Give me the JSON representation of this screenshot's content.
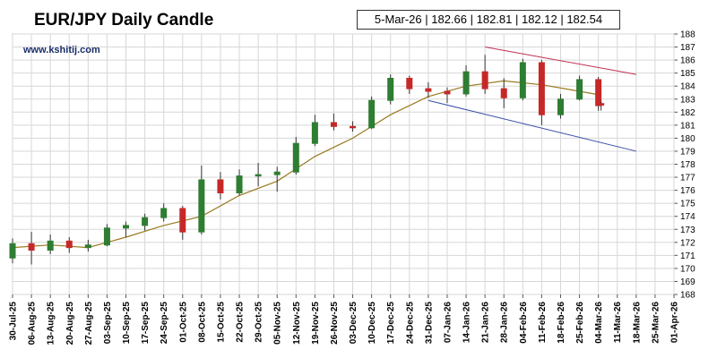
{
  "header": {
    "title": "EUR/JPY Daily Candle",
    "ohlc_readout": "5-Mar-26 | 182.66 | 182.81 | 182.12 | 182.54",
    "watermark": "www.kshitij.com"
  },
  "colors": {
    "up_candle": "#2e7d32",
    "down_candle": "#c62828",
    "moving_average": "#9a7a1f",
    "resistance_line": "#c03050",
    "support_line": "#3b4fa8",
    "grid": "#d7d7d7"
  },
  "chart_data": {
    "type": "candlestick",
    "title": "EUR/JPY Daily Candle",
    "xlabel": "",
    "ylabel": "",
    "ylim": [
      168,
      188
    ],
    "y_ticks": [
      168,
      169,
      170,
      171,
      172,
      173,
      174,
      175,
      176,
      177,
      178,
      179,
      180,
      181,
      182,
      183,
      184,
      185,
      186,
      187,
      188
    ],
    "x_ticks": [
      "30-Jul-25",
      "06-Aug-25",
      "13-Aug-25",
      "20-Aug-25",
      "27-Aug-25",
      "03-Sep-25",
      "10-Sep-25",
      "17-Sep-25",
      "24-Sep-25",
      "01-Oct-25",
      "08-Oct-25",
      "15-Oct-25",
      "22-Oct-25",
      "29-Oct-25",
      "05-Nov-25",
      "12-Nov-25",
      "19-Nov-25",
      "26-Nov-25",
      "03-Dec-25",
      "10-Dec-25",
      "17-Dec-25",
      "24-Dec-25",
      "31-Dec-25",
      "07-Jan-26",
      "14-Jan-26",
      "21-Jan-26",
      "28-Jan-26",
      "04-Feb-26",
      "11-Feb-26",
      "18-Feb-26",
      "25-Feb-26",
      "04-Mar-26",
      "11-Mar-26",
      "18-Mar-26",
      "25-Mar-26",
      "01-Apr-26"
    ],
    "grid": true,
    "candles": [
      {
        "date": "30-Jul-25",
        "o": 170.8,
        "h": 172.3,
        "l": 170.4,
        "c": 171.9
      },
      {
        "date": "06-Aug-25",
        "o": 171.9,
        "h": 172.8,
        "l": 170.3,
        "c": 171.4
      },
      {
        "date": "13-Aug-25",
        "o": 171.4,
        "h": 172.6,
        "l": 171.1,
        "c": 172.1
      },
      {
        "date": "20-Aug-25",
        "o": 172.1,
        "h": 172.4,
        "l": 171.2,
        "c": 171.6
      },
      {
        "date": "27-Aug-25",
        "o": 171.6,
        "h": 172.2,
        "l": 171.3,
        "c": 171.8
      },
      {
        "date": "03-Sep-25",
        "o": 171.8,
        "h": 173.4,
        "l": 171.7,
        "c": 173.1
      },
      {
        "date": "10-Sep-25",
        "o": 173.1,
        "h": 173.6,
        "l": 172.4,
        "c": 173.3
      },
      {
        "date": "17-Sep-25",
        "o": 173.3,
        "h": 174.2,
        "l": 172.9,
        "c": 173.9
      },
      {
        "date": "24-Sep-25",
        "o": 173.9,
        "h": 175.0,
        "l": 173.6,
        "c": 174.6
      },
      {
        "date": "01-Oct-25",
        "o": 174.6,
        "h": 174.8,
        "l": 172.2,
        "c": 172.8
      },
      {
        "date": "08-Oct-25",
        "o": 172.8,
        "h": 177.9,
        "l": 172.6,
        "c": 176.8
      },
      {
        "date": "15-Oct-25",
        "o": 176.8,
        "h": 177.4,
        "l": 175.3,
        "c": 175.8
      },
      {
        "date": "22-Oct-25",
        "o": 175.8,
        "h": 177.6,
        "l": 175.6,
        "c": 177.1
      },
      {
        "date": "29-Oct-25",
        "o": 177.1,
        "h": 178.1,
        "l": 176.3,
        "c": 177.2
      },
      {
        "date": "05-Nov-25",
        "o": 177.2,
        "h": 177.8,
        "l": 175.9,
        "c": 177.4
      },
      {
        "date": "12-Nov-25",
        "o": 177.4,
        "h": 180.1,
        "l": 177.2,
        "c": 179.6
      },
      {
        "date": "19-Nov-25",
        "o": 179.6,
        "h": 181.8,
        "l": 179.4,
        "c": 181.2
      },
      {
        "date": "26-Nov-25",
        "o": 181.2,
        "h": 181.9,
        "l": 180.6,
        "c": 180.9
      },
      {
        "date": "03-Dec-25",
        "o": 180.9,
        "h": 181.3,
        "l": 180.5,
        "c": 180.8
      },
      {
        "date": "10-Dec-25",
        "o": 180.8,
        "h": 183.2,
        "l": 180.7,
        "c": 182.9
      },
      {
        "date": "17-Dec-25",
        "o": 182.9,
        "h": 184.9,
        "l": 182.6,
        "c": 184.6
      },
      {
        "date": "24-Dec-25",
        "o": 184.6,
        "h": 184.8,
        "l": 183.4,
        "c": 183.8
      },
      {
        "date": "31-Dec-25",
        "o": 183.8,
        "h": 184.3,
        "l": 183.1,
        "c": 183.6
      },
      {
        "date": "07-Jan-26",
        "o": 183.6,
        "h": 183.9,
        "l": 182.7,
        "c": 183.4
      },
      {
        "date": "14-Jan-26",
        "o": 183.4,
        "h": 185.6,
        "l": 183.2,
        "c": 185.1
      },
      {
        "date": "21-Jan-26",
        "o": 185.1,
        "h": 186.4,
        "l": 183.4,
        "c": 183.8
      },
      {
        "date": "28-Jan-26",
        "o": 183.8,
        "h": 184.6,
        "l": 182.3,
        "c": 183.1
      },
      {
        "date": "04-Feb-26",
        "o": 183.1,
        "h": 186.1,
        "l": 182.9,
        "c": 185.8
      },
      {
        "date": "11-Feb-26",
        "o": 185.8,
        "h": 186.0,
        "l": 181.0,
        "c": 181.8
      },
      {
        "date": "18-Feb-26",
        "o": 181.8,
        "h": 183.4,
        "l": 181.5,
        "c": 183.0
      },
      {
        "date": "25-Feb-26",
        "o": 183.0,
        "h": 184.8,
        "l": 182.9,
        "c": 184.5
      },
      {
        "date": "04-Mar-26",
        "o": 184.5,
        "h": 184.7,
        "l": 182.1,
        "c": 182.5
      },
      {
        "date": "05-Mar-26",
        "o": 182.66,
        "h": 182.81,
        "l": 182.12,
        "c": 182.54
      }
    ],
    "moving_average": [
      {
        "date": "30-Jul-25",
        "v": 171.6
      },
      {
        "date": "13-Aug-25",
        "v": 171.8
      },
      {
        "date": "27-Aug-25",
        "v": 171.6
      },
      {
        "date": "10-Sep-25",
        "v": 172.4
      },
      {
        "date": "24-Sep-25",
        "v": 173.3
      },
      {
        "date": "08-Oct-25",
        "v": 174.0
      },
      {
        "date": "22-Oct-25",
        "v": 175.6
      },
      {
        "date": "05-Nov-25",
        "v": 176.7
      },
      {
        "date": "19-Nov-25",
        "v": 178.6
      },
      {
        "date": "03-Dec-25",
        "v": 180.0
      },
      {
        "date": "17-Dec-25",
        "v": 181.8
      },
      {
        "date": "31-Dec-25",
        "v": 183.2
      },
      {
        "date": "14-Jan-26",
        "v": 184.0
      },
      {
        "date": "28-Jan-26",
        "v": 184.4
      },
      {
        "date": "11-Feb-26",
        "v": 184.1
      },
      {
        "date": "25-Feb-26",
        "v": 183.6
      },
      {
        "date": "05-Mar-26",
        "v": 183.3
      }
    ],
    "trendlines": [
      {
        "name": "resistance",
        "from": {
          "date": "21-Jan-26",
          "v": 187.0
        },
        "to": {
          "date": "18-Mar-26",
          "v": 184.9
        }
      },
      {
        "name": "support",
        "from": {
          "date": "31-Dec-25",
          "v": 182.9
        },
        "to": {
          "date": "18-Mar-26",
          "v": 179.0
        }
      }
    ]
  }
}
